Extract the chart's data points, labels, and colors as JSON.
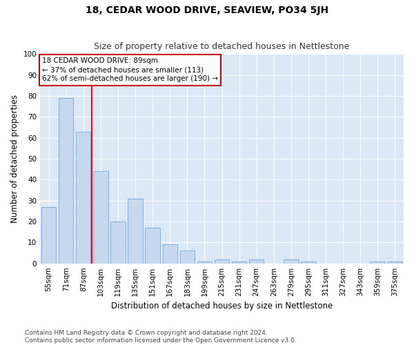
{
  "title": "18, CEDAR WOOD DRIVE, SEAVIEW, PO34 5JH",
  "subtitle": "Size of property relative to detached houses in Nettlestone",
  "xlabel": "Distribution of detached houses by size in Nettlestone",
  "ylabel": "Number of detached properties",
  "categories": [
    "55sqm",
    "71sqm",
    "87sqm",
    "103sqm",
    "119sqm",
    "135sqm",
    "151sqm",
    "167sqm",
    "183sqm",
    "199sqm",
    "215sqm",
    "231sqm",
    "247sqm",
    "263sqm",
    "279sqm",
    "295sqm",
    "311sqm",
    "327sqm",
    "343sqm",
    "359sqm",
    "375sqm"
  ],
  "values": [
    27,
    79,
    63,
    44,
    20,
    31,
    17,
    9,
    6,
    1,
    2,
    1,
    2,
    0,
    2,
    1,
    0,
    0,
    0,
    1,
    1
  ],
  "bar_color": "#c5d8ee",
  "bar_edgecolor": "#7aafda",
  "redline_index": 2,
  "ylim": [
    0,
    100
  ],
  "yticks": [
    0,
    10,
    20,
    30,
    40,
    50,
    60,
    70,
    80,
    90,
    100
  ],
  "annotation_text": "18 CEDAR WOOD DRIVE: 89sqm\n← 37% of detached houses are smaller (113)\n62% of semi-detached houses are larger (190) →",
  "annotation_box_color": "#ffffff",
  "annotation_box_edgecolor": "#cc0000",
  "footer_line1": "Contains HM Land Registry data © Crown copyright and database right 2024.",
  "footer_line2": "Contains public sector information licensed under the Open Government Licence v3.0.",
  "fig_bg_color": "#ffffff",
  "plot_bg_color": "#dce8f5",
  "grid_color": "#ffffff",
  "title_fontsize": 10,
  "subtitle_fontsize": 9,
  "axis_label_fontsize": 8.5,
  "tick_fontsize": 7.5,
  "annotation_fontsize": 7.5,
  "footer_fontsize": 6.5
}
